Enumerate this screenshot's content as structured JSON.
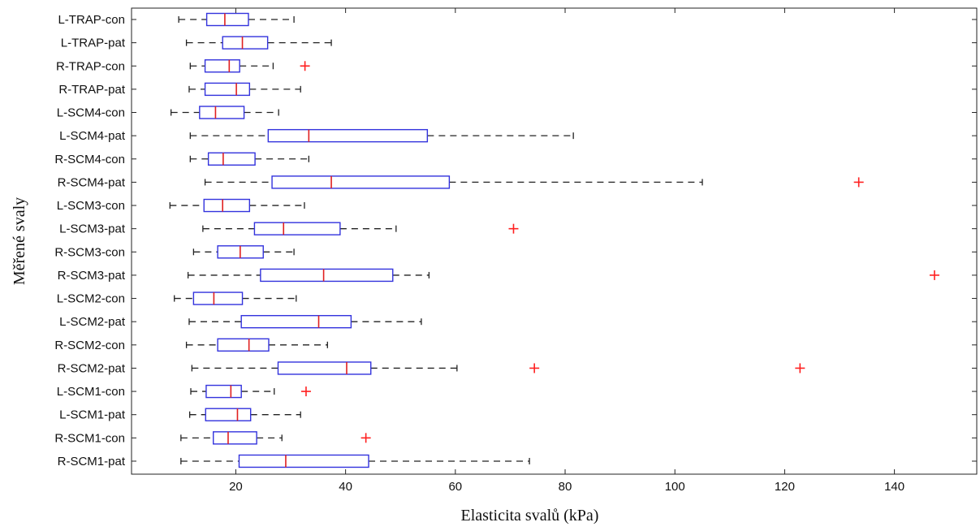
{
  "chart_data": {
    "type": "boxplot",
    "orientation": "horizontal",
    "xlabel": "Elasticita svalů (kPa)",
    "ylabel": "Měřené svaly",
    "xlim": [
      1,
      155
    ],
    "xticks": [
      20,
      40,
      60,
      80,
      100,
      120,
      140
    ],
    "grid": false,
    "colors": {
      "box": "#3333dd",
      "median": "#e02020",
      "whisker": "#222222",
      "outlier": "#ff2020"
    },
    "categories": [
      "L-TRAP-con",
      "L-TRAP-pat",
      "R-TRAP-con",
      "R-TRAP-pat",
      "L-SCM4-con",
      "L-SCM4-pat",
      "R-SCM4-con",
      "R-SCM4-pat",
      "L-SCM3-con",
      "L-SCM3-pat",
      "R-SCM3-con",
      "R-SCM3-pat",
      "L-SCM2-con",
      "L-SCM2-pat",
      "R-SCM2-con",
      "R-SCM2-pat",
      "L-SCM1-con",
      "L-SCM1-pat",
      "R-SCM1-con",
      "R-SCM1-pat"
    ],
    "boxes": [
      {
        "min": 9.6,
        "q1": 14.7,
        "median": 18.0,
        "q3": 22.3,
        "max": 30.6,
        "outliers": []
      },
      {
        "min": 11.0,
        "q1": 17.6,
        "median": 21.2,
        "q3": 25.8,
        "max": 37.4,
        "outliers": []
      },
      {
        "min": 11.7,
        "q1": 14.4,
        "median": 18.8,
        "q3": 20.7,
        "max": 26.8,
        "outliers": [
          32.6
        ]
      },
      {
        "min": 11.5,
        "q1": 14.4,
        "median": 20.1,
        "q3": 22.5,
        "max": 31.8,
        "outliers": []
      },
      {
        "min": 8.2,
        "q1": 13.4,
        "median": 16.3,
        "q3": 21.5,
        "max": 27.8,
        "outliers": []
      },
      {
        "min": 11.7,
        "q1": 25.9,
        "median": 33.3,
        "q3": 54.9,
        "max": 81.5,
        "outliers": []
      },
      {
        "min": 11.7,
        "q1": 15.0,
        "median": 17.7,
        "q3": 23.5,
        "max": 33.3,
        "outliers": []
      },
      {
        "min": 14.4,
        "q1": 26.6,
        "median": 37.4,
        "q3": 58.9,
        "max": 105.0,
        "outliers": [
          133.5
        ]
      },
      {
        "min": 8.0,
        "q1": 14.2,
        "median": 17.6,
        "q3": 22.5,
        "max": 32.5,
        "outliers": []
      },
      {
        "min": 14.0,
        "q1": 23.4,
        "median": 28.7,
        "q3": 39.0,
        "max": 49.2,
        "outliers": [
          70.6
        ]
      },
      {
        "min": 12.3,
        "q1": 16.7,
        "median": 20.8,
        "q3": 25.0,
        "max": 30.6,
        "outliers": []
      },
      {
        "min": 11.3,
        "q1": 24.5,
        "median": 36.0,
        "q3": 48.6,
        "max": 55.2,
        "outliers": [
          147.3
        ]
      },
      {
        "min": 8.8,
        "q1": 12.3,
        "median": 16.0,
        "q3": 21.2,
        "max": 31.0,
        "outliers": []
      },
      {
        "min": 11.5,
        "q1": 21.0,
        "median": 35.1,
        "q3": 41.0,
        "max": 53.8,
        "outliers": []
      },
      {
        "min": 11.0,
        "q1": 16.7,
        "median": 22.4,
        "q3": 26.0,
        "max": 36.7,
        "outliers": []
      },
      {
        "min": 12.0,
        "q1": 27.7,
        "median": 40.2,
        "q3": 44.6,
        "max": 60.3,
        "outliers": [
          74.4,
          122.8
        ]
      },
      {
        "min": 11.8,
        "q1": 14.6,
        "median": 19.1,
        "q3": 21.0,
        "max": 27.0,
        "outliers": [
          32.8
        ]
      },
      {
        "min": 11.6,
        "q1": 14.5,
        "median": 20.3,
        "q3": 22.7,
        "max": 31.8,
        "outliers": []
      },
      {
        "min": 10.0,
        "q1": 15.9,
        "median": 18.6,
        "q3": 23.8,
        "max": 28.4,
        "outliers": [
          43.7
        ]
      },
      {
        "min": 10.0,
        "q1": 20.6,
        "median": 29.1,
        "q3": 44.2,
        "max": 73.5,
        "outliers": []
      }
    ]
  }
}
